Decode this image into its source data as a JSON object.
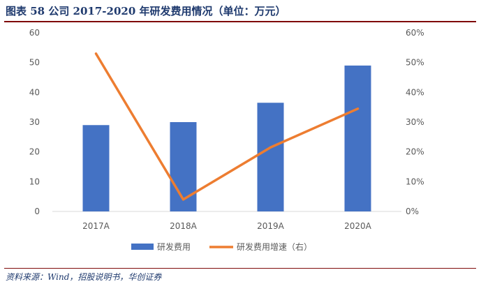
{
  "figure": {
    "title": "图表 58   公司 2017-2020 年研发费用情况（单位：万元）",
    "source": "资料来源：Wind，招股说明书，华创证券"
  },
  "chart_data": {
    "type": "bar",
    "categories": [
      "2017A",
      "2018A",
      "2019A",
      "2020A"
    ],
    "series": [
      {
        "name": "研发费用",
        "type": "bar",
        "axis": "left",
        "values": [
          29,
          30,
          36.5,
          49
        ],
        "color": "#4472c4"
      },
      {
        "name": "研发费用增速（右）",
        "type": "line",
        "axis": "right",
        "values": [
          53,
          4,
          21.5,
          34.5
        ],
        "color": "#ed7d31"
      }
    ],
    "y_left": {
      "min": 0,
      "max": 60,
      "ticks": [
        "0",
        "10",
        "20",
        "30",
        "40",
        "50",
        "60"
      ]
    },
    "y_right": {
      "min": 0,
      "max": 60,
      "ticks": [
        "0%",
        "10%",
        "20%",
        "30%",
        "40%",
        "50%",
        "60%"
      ]
    },
    "grid": false,
    "legend": "bottom"
  }
}
